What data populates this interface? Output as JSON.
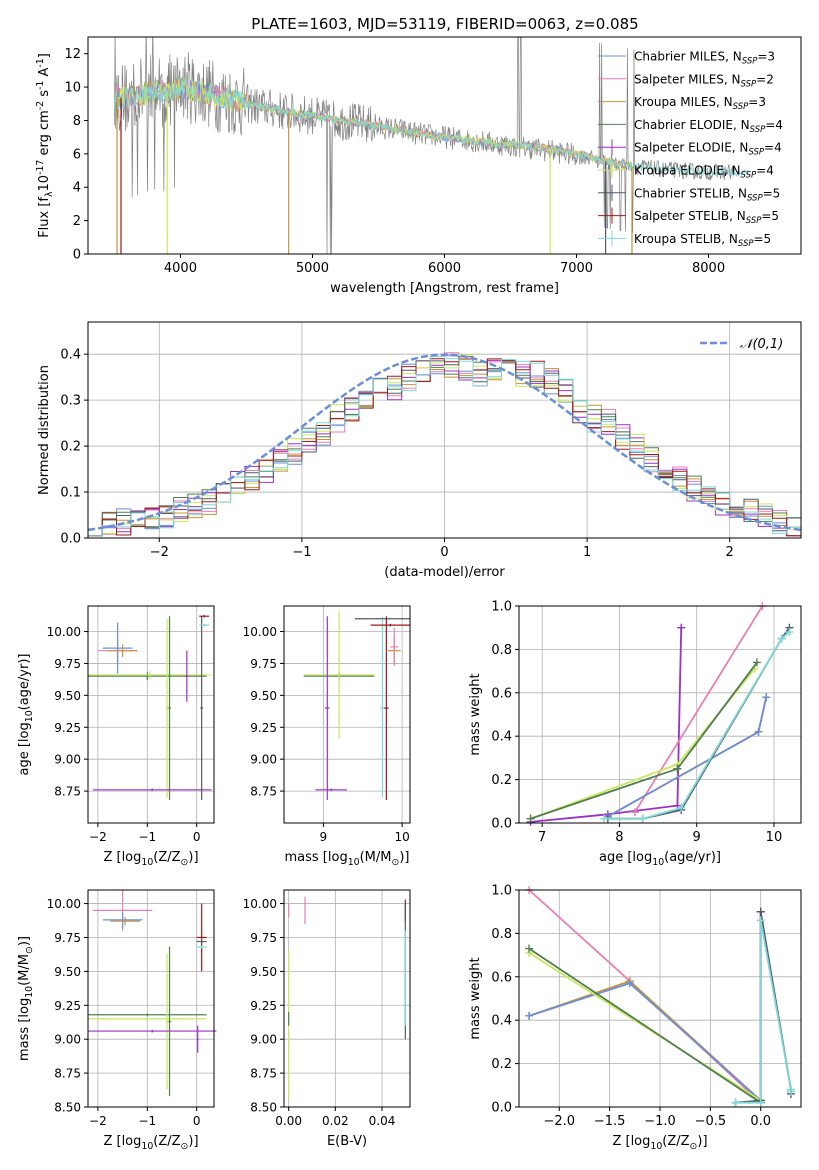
{
  "figure": {
    "title": "PLATE=1603, MJD=53119, FIBERID=0063, z=0.085"
  },
  "colors": {
    "chabrier_miles": "#6a8fd8",
    "salpeter_miles": "#e87fb4",
    "kroupa_miles": "#c8913a",
    "chabrier_elodie": "#4f7f4f",
    "salpeter_elodie": "#9b30c8",
    "kroupa_elodie": "#c9e85a",
    "chabrier_stelib": "#505a6a",
    "salpeter_stelib": "#a01818",
    "kroupa_stelib": "#7fd8d8",
    "data": "#808080",
    "gaussian": "#6a8fd8",
    "grid": "#b0b0b0"
  },
  "chart_data": [
    {
      "id": "spectrum",
      "type": "line",
      "xlabel": "wavelength [Angstrom, rest frame]",
      "ylabel": "Flux [f$_\\lambda$10$^{-17}$ erg cm$^{-2}$ s$^{-1}$ A$^{-1}$]",
      "xlim": [
        3300,
        8700
      ],
      "ylim": [
        0,
        13
      ],
      "xticks": [
        4000,
        5000,
        6000,
        7000,
        8000
      ],
      "yticks": [
        0,
        2,
        4,
        6,
        8,
        10,
        12
      ],
      "grid": false,
      "legend_placement": "top-right",
      "legend": [
        {
          "label": "Chabrier MILES, N",
          "sub": "SSP",
          "tail": "=3",
          "color_key": "chabrier_miles"
        },
        {
          "label": "Salpeter MILES, N",
          "sub": "SSP",
          "tail": "=2",
          "color_key": "salpeter_miles"
        },
        {
          "label": "Kroupa MILES, N",
          "sub": "SSP",
          "tail": "=3",
          "color_key": "kroupa_miles"
        },
        {
          "label": "Chabrier ELODIE, N",
          "sub": "SSP",
          "tail": "=4",
          "color_key": "chabrier_elodie"
        },
        {
          "label": "Salpeter ELODIE, N",
          "sub": "SSP",
          "tail": "=4",
          "color_key": "salpeter_elodie"
        },
        {
          "label": "Kroupa ELODIE, N",
          "sub": "SSP",
          "tail": "=4",
          "color_key": "kroupa_elodie"
        },
        {
          "label": "Chabrier STELIB, N",
          "sub": "SSP",
          "tail": "=5",
          "color_key": "chabrier_stelib"
        },
        {
          "label": "Salpeter STELIB, N",
          "sub": "SSP",
          "tail": "=5",
          "color_key": "salpeter_stelib"
        },
        {
          "label": "Kroupa STELIB, N",
          "sub": "SSP",
          "tail": "=5",
          "color_key": "kroupa_stelib"
        }
      ],
      "observed_continuum": {
        "x": [
          3500,
          3600,
          3700,
          3800,
          3900,
          4000,
          4100,
          4200,
          4300,
          4400,
          4500,
          4600,
          4700,
          4800,
          4900,
          5000,
          5100,
          5200,
          5300,
          5400,
          5500,
          5600,
          5700,
          5800,
          5900,
          6000,
          6200,
          6400,
          6600,
          6800,
          7000,
          7200,
          7400,
          7600,
          7800,
          8000,
          8200
        ],
        "y": [
          9.5,
          9.3,
          9.6,
          9.9,
          9.7,
          10.2,
          9.9,
          9.7,
          9.4,
          9.2,
          9.0,
          8.8,
          8.7,
          8.5,
          8.4,
          8.3,
          8.1,
          8.0,
          7.9,
          7.8,
          7.6,
          7.5,
          7.4,
          7.2,
          7.1,
          7.0,
          6.8,
          6.6,
          6.4,
          6.2,
          5.9,
          5.6,
          5.3,
          5.1,
          5.0,
          4.9,
          4.9
        ]
      },
      "model_continuum": {
        "x": [
          3500,
          3600,
          3700,
          3800,
          3900,
          4000,
          4100,
          4200,
          4300,
          4400,
          4500,
          4600,
          4700,
          4800,
          4900,
          5000,
          5200,
          5400,
          5600,
          5800,
          6000,
          6200,
          6400,
          6600,
          6800,
          7000,
          7200,
          7400,
          7600,
          7800,
          8000,
          8200,
          8300
        ],
        "y": [
          9.4,
          9.3,
          9.5,
          9.8,
          9.7,
          10.0,
          9.8,
          9.6,
          9.4,
          9.2,
          9.0,
          8.8,
          8.7,
          8.5,
          8.4,
          8.3,
          8.0,
          7.8,
          7.5,
          7.2,
          7.0,
          6.8,
          6.6,
          6.5,
          6.3,
          6.0,
          5.6,
          5.3,
          5.1,
          5.0,
          4.9,
          4.9,
          4.9
        ]
      }
    },
    {
      "id": "residuals",
      "type": "line",
      "xlabel": "(data-model)/error",
      "ylabel": "Normed distribution",
      "xlim": [
        -2.5,
        2.5
      ],
      "ylim": [
        0,
        0.47
      ],
      "xticks": [
        -2,
        -1,
        0,
        1,
        2
      ],
      "yticks": [
        0.0,
        0.1,
        0.2,
        0.3,
        0.4
      ],
      "grid": true,
      "legend_placement": "top-right",
      "gaussian_label": "$\\mathcal{N}(0,1)$",
      "bin_width": 0.1,
      "bin_start": -2.5,
      "envelope": [
        0.03,
        0.03,
        0.035,
        0.04,
        0.045,
        0.05,
        0.06,
        0.07,
        0.08,
        0.1,
        0.12,
        0.13,
        0.15,
        0.17,
        0.19,
        0.21,
        0.23,
        0.26,
        0.28,
        0.3,
        0.32,
        0.33,
        0.35,
        0.36,
        0.37,
        0.375,
        0.37,
        0.36,
        0.36,
        0.36,
        0.36,
        0.355,
        0.34,
        0.32,
        0.28,
        0.26,
        0.25,
        0.22,
        0.2,
        0.17,
        0.15,
        0.13,
        0.11,
        0.09,
        0.08,
        0.07,
        0.06,
        0.05,
        0.04,
        0.03
      ]
    },
    {
      "id": "age-vs-Z",
      "type": "scatter",
      "xlabel": "Z [log$_{10}$(Z/Z$_\\odot$)]",
      "ylabel": "age  [log$_{10}$(age/yr)]",
      "xlim": [
        -2.2,
        0.35
      ],
      "ylim": [
        8.5,
        10.2
      ],
      "xticks": [
        -2,
        -1,
        0
      ],
      "yticks": [
        8.75,
        9.0,
        9.25,
        9.5,
        9.75,
        10.0
      ],
      "ytick_labels": [
        "8.75",
        "9.00",
        "9.25",
        "9.50",
        "9.75",
        "10.00"
      ],
      "grid": true,
      "points": [
        {
          "x": -1.6,
          "y": 9.85,
          "dx": 0.4,
          "dy": 0.1,
          "c": "salpeter_miles"
        },
        {
          "x": -1.6,
          "y": 9.87,
          "dx": 0.3,
          "dy": 0.2,
          "c": "chabrier_miles"
        },
        {
          "x": -1.5,
          "y": 9.85,
          "dx": 0.3,
          "dy": 0.05,
          "c": "kroupa_miles"
        },
        {
          "x": -1.0,
          "y": 9.65,
          "dx": 1.2,
          "dy": 0.03,
          "c": "chabrier_elodie"
        },
        {
          "x": -0.95,
          "y": 9.66,
          "dx": 1.25,
          "dy": 0.03,
          "c": "kroupa_elodie"
        },
        {
          "x": -0.55,
          "y": 9.4,
          "dx": 0.03,
          "dy": 0.72,
          "c": "chabrier_elodie"
        },
        {
          "x": -0.6,
          "y": 9.4,
          "dx": 0.03,
          "dy": 0.7,
          "c": "kroupa_elodie"
        },
        {
          "x": -0.9,
          "y": 8.76,
          "dx": 1.2,
          "dy": 0.01,
          "c": "salpeter_elodie"
        },
        {
          "x": 0.1,
          "y": 9.4,
          "dx": 0.03,
          "dy": 0.72,
          "c": "chabrier_stelib"
        },
        {
          "x": 0.15,
          "y": 10.12,
          "dx": 0.1,
          "dy": 0.01,
          "c": "salpeter_stelib"
        },
        {
          "x": 0.15,
          "y": 10.05,
          "dx": 0.1,
          "dy": 0.01,
          "c": "kroupa_stelib"
        },
        {
          "x": -0.2,
          "y": 9.65,
          "dx": 0.03,
          "dy": 0.2,
          "c": "salpeter_elodie"
        }
      ]
    },
    {
      "id": "age-vs-mass",
      "type": "scatter",
      "xlabel": "mass [log$_{10}$(M/M$_\\odot$)]",
      "ylabel": "",
      "xlim": [
        8.5,
        10.1
      ],
      "ylim": [
        8.5,
        10.2
      ],
      "xticks": [
        9,
        10
      ],
      "yticks": [
        8.75,
        9.0,
        9.25,
        9.5,
        9.75,
        10.0
      ],
      "ytick_labels": [
        "8.75",
        "9.00",
        "9.25",
        "9.50",
        "9.75",
        "10.00"
      ],
      "grid": true,
      "points": [
        {
          "x": 9.2,
          "y": 9.65,
          "dx": 0.45,
          "dy": 0.03,
          "c": "chabrier_elodie"
        },
        {
          "x": 9.2,
          "y": 9.66,
          "dx": 0.45,
          "dy": 0.5,
          "c": "kroupa_elodie"
        },
        {
          "x": 9.05,
          "y": 9.4,
          "dx": 0.03,
          "dy": 0.72,
          "c": "salpeter_elodie"
        },
        {
          "x": 9.1,
          "y": 8.76,
          "dx": 0.2,
          "dy": 0.01,
          "c": "salpeter_elodie"
        },
        {
          "x": 9.75,
          "y": 10.1,
          "dx": 0.35,
          "dy": 0.01,
          "c": "chabrier_stelib"
        },
        {
          "x": 9.75,
          "y": 9.4,
          "dx": 0.03,
          "dy": 0.7,
          "c": "kroupa_stelib"
        },
        {
          "x": 9.8,
          "y": 9.4,
          "dx": 0.03,
          "dy": 0.72,
          "c": "salpeter_stelib"
        },
        {
          "x": 9.9,
          "y": 9.85,
          "dx": 0.08,
          "dy": 0.1,
          "c": "kroupa_miles"
        },
        {
          "x": 9.9,
          "y": 9.88,
          "dx": 0.05,
          "dy": 0.15,
          "c": "salpeter_miles"
        },
        {
          "x": 9.85,
          "y": 10.05,
          "dx": 0.25,
          "dy": 0.01,
          "c": "salpeter_stelib"
        }
      ]
    },
    {
      "id": "mass-weight-vs-age",
      "type": "line",
      "xlabel": "age  [log$_{10}$(age/yr)]",
      "ylabel": "mass weight",
      "xlim": [
        6.7,
        10.35
      ],
      "ylim": [
        0,
        1.0
      ],
      "xticks": [
        7,
        8,
        9,
        10
      ],
      "yticks": [
        0.0,
        0.2,
        0.4,
        0.6,
        0.8,
        1.0
      ],
      "grid": true,
      "series": [
        {
          "c": "salpeter_elodie",
          "x": [
            6.85,
            7.85,
            8.75,
            8.8
          ],
          "y": [
            0.005,
            0.04,
            0.08,
            0.9
          ]
        },
        {
          "c": "salpeter_miles",
          "x": [
            8.2,
            9.85
          ],
          "y": [
            0.05,
            1.0
          ]
        },
        {
          "c": "kroupa_miles",
          "x": [
            7.85,
            9.8,
            9.9
          ],
          "y": [
            0.03,
            0.42,
            0.58
          ]
        },
        {
          "c": "chabrier_miles",
          "x": [
            7.85,
            9.8,
            9.9
          ],
          "y": [
            0.03,
            0.42,
            0.58
          ]
        },
        {
          "c": "kroupa_elodie",
          "x": [
            6.85,
            8.75,
            9.75
          ],
          "y": [
            0.02,
            0.27,
            0.71
          ]
        },
        {
          "c": "chabrier_elodie",
          "x": [
            6.85,
            8.75,
            9.78
          ],
          "y": [
            0.02,
            0.25,
            0.74
          ]
        },
        {
          "c": "chabrier_stelib",
          "x": [
            7.85,
            8.3,
            8.8,
            10.1,
            10.2
          ],
          "y": [
            0.02,
            0.02,
            0.06,
            0.85,
            0.9
          ]
        },
        {
          "c": "kroupa_stelib",
          "x": [
            7.8,
            8.3,
            8.8,
            10.1,
            10.2
          ],
          "y": [
            0.02,
            0.02,
            0.07,
            0.85,
            0.88
          ]
        }
      ]
    },
    {
      "id": "mass-vs-Z",
      "type": "scatter",
      "xlabel": "Z [log$_{10}$(Z/Z$_\\odot$)]",
      "ylabel": "mass [log$_{10}$(M/M$_\\odot$)]",
      "xlim": [
        -2.2,
        0.35
      ],
      "ylim": [
        8.5,
        10.1
      ],
      "xticks": [
        -2,
        -1,
        0
      ],
      "yticks": [
        8.5,
        8.75,
        9.0,
        9.25,
        9.5,
        9.75,
        10.0
      ],
      "ytick_labels": [
        "8.50",
        "8.75",
        "9.00",
        "9.25",
        "9.50",
        "9.75",
        "10.00"
      ],
      "grid": true,
      "points": [
        {
          "x": -1.5,
          "y": 9.95,
          "dx": 0.6,
          "dy": 0.15,
          "c": "salpeter_miles"
        },
        {
          "x": -1.5,
          "y": 9.88,
          "dx": 0.4,
          "dy": 0.06,
          "c": "chabrier_miles"
        },
        {
          "x": -1.45,
          "y": 9.87,
          "dx": 0.3,
          "dy": 0.03,
          "c": "kroupa_miles"
        },
        {
          "x": -1.0,
          "y": 9.18,
          "dx": 1.2,
          "dy": 0.01,
          "c": "chabrier_elodie"
        },
        {
          "x": -1.0,
          "y": 9.15,
          "dx": 1.2,
          "dy": 0.01,
          "c": "kroupa_elodie"
        },
        {
          "x": -0.55,
          "y": 9.13,
          "dx": 0.03,
          "dy": 0.55,
          "c": "chabrier_elodie"
        },
        {
          "x": -0.6,
          "y": 9.13,
          "dx": 0.03,
          "dy": 0.5,
          "c": "kroupa_elodie"
        },
        {
          "x": -0.9,
          "y": 9.06,
          "dx": 1.3,
          "dy": 0.01,
          "c": "salpeter_elodie"
        },
        {
          "x": 0.1,
          "y": 9.75,
          "dx": 0.1,
          "dy": 0.25,
          "c": "salpeter_stelib"
        },
        {
          "x": 0.1,
          "y": 9.72,
          "dx": 0.1,
          "dy": 0.01,
          "c": "chabrier_stelib"
        },
        {
          "x": 0.1,
          "y": 9.68,
          "dx": 0.1,
          "dy": 0.01,
          "c": "kroupa_stelib"
        },
        {
          "x": 0.02,
          "y": 9.0,
          "dx": 0.02,
          "dy": 0.1,
          "c": "salpeter_elodie"
        }
      ]
    },
    {
      "id": "mass-vs-ebv",
      "type": "scatter",
      "xlabel": "E(B-V)",
      "ylabel": "",
      "xlim": [
        -0.002,
        0.052
      ],
      "ylim": [
        8.5,
        10.1
      ],
      "xticks": [
        0.0,
        0.02,
        0.04
      ],
      "xtick_labels": [
        "0.00",
        "0.02",
        "0.04"
      ],
      "yticks": [
        8.5,
        8.75,
        9.0,
        9.25,
        9.5,
        9.75,
        10.0
      ],
      "ytick_labels": [
        "8.50",
        "8.75",
        "9.00",
        "9.25",
        "9.50",
        "9.75",
        "10.00"
      ],
      "grid": true,
      "points": [
        {
          "x": 0.0,
          "y": 9.95,
          "dx": 0.0,
          "dy": 0.05,
          "c": "salpeter_miles"
        },
        {
          "x": 0.0,
          "y": 9.1,
          "dx": 0.0,
          "dy": 0.55,
          "c": "kroupa_elodie"
        },
        {
          "x": 0.0,
          "y": 9.15,
          "dx": 0.0,
          "dy": 0.05,
          "c": "chabrier_elodie"
        },
        {
          "x": 0.007,
          "y": 9.95,
          "dx": 0.0,
          "dy": 0.1,
          "c": "salpeter_miles"
        },
        {
          "x": 0.05,
          "y": 9.95,
          "dx": 0.0,
          "dy": 0.08,
          "c": "salpeter_stelib"
        },
        {
          "x": 0.05,
          "y": 9.5,
          "dx": 0.0,
          "dy": 0.5,
          "c": "chabrier_stelib"
        },
        {
          "x": 0.05,
          "y": 9.45,
          "dx": 0.0,
          "dy": 0.35,
          "c": "kroupa_stelib"
        }
      ]
    },
    {
      "id": "mass-weight-vs-Z",
      "type": "line",
      "xlabel": "Z [log$_{10}$(Z/Z$_\\odot$)]",
      "ylabel": "mass weight",
      "xlim": [
        -2.4,
        0.4
      ],
      "ylim": [
        0,
        1.0
      ],
      "xticks": [
        -2.0,
        -1.5,
        -1.0,
        -0.5,
        0.0
      ],
      "xtick_labels": [
        "−2.0",
        "−1.5",
        "−1.0",
        "−0.5",
        "0.0"
      ],
      "yticks": [
        0.0,
        0.2,
        0.4,
        0.6,
        0.8,
        1.0
      ],
      "grid": true,
      "series": [
        {
          "c": "salpeter_miles",
          "x": [
            -2.3,
            -1.3,
            0.0
          ],
          "y": [
            1.0,
            0.58,
            0.02
          ]
        },
        {
          "c": "kroupa_miles",
          "x": [
            -2.3,
            -1.3,
            0.0
          ],
          "y": [
            0.42,
            0.58,
            0.03
          ]
        },
        {
          "c": "chabrier_miles",
          "x": [
            -2.3,
            -1.3,
            0.0
          ],
          "y": [
            0.42,
            0.57,
            0.03
          ]
        },
        {
          "c": "kroupa_elodie",
          "x": [
            -2.3,
            0.0
          ],
          "y": [
            0.71,
            0.03
          ]
        },
        {
          "c": "chabrier_elodie",
          "x": [
            -2.3,
            0.0
          ],
          "y": [
            0.73,
            0.02
          ]
        },
        {
          "c": "salpeter_elodie",
          "x": [
            0.0,
            0.0
          ],
          "y": [
            0.9,
            0.02
          ]
        },
        {
          "c": "chabrier_stelib",
          "x": [
            -0.25,
            0.0,
            0.0,
            0.3,
            0.3
          ],
          "y": [
            0.02,
            0.03,
            0.9,
            0.08,
            0.06
          ]
        },
        {
          "c": "kroupa_stelib",
          "x": [
            -0.25,
            0.0,
            0.0,
            0.3,
            0.3
          ],
          "y": [
            0.02,
            0.02,
            0.86,
            0.08,
            0.07
          ]
        }
      ]
    }
  ]
}
